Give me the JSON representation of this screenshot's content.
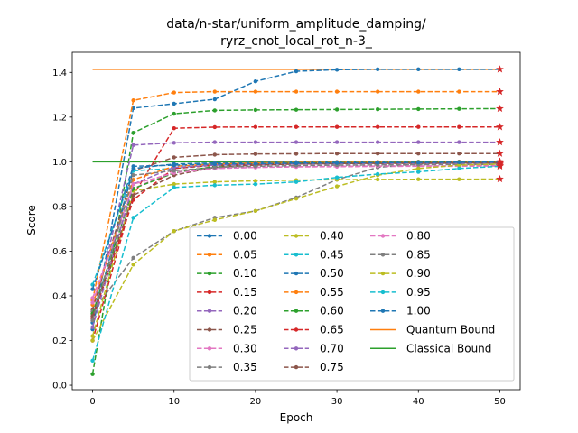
{
  "chart_data": {
    "type": "line",
    "title_line1": "data/n-star/uniform_amplitude_damping/",
    "title_line2": "ryrz_cnot_local_rot_n-3_",
    "xlabel": "Epoch",
    "ylabel": "Score",
    "xlim": [
      -2.5,
      52.5
    ],
    "ylim": [
      -0.02,
      1.49
    ],
    "xticks": [
      0,
      10,
      20,
      30,
      40,
      50
    ],
    "yticks": [
      0.0,
      0.2,
      0.4,
      0.6,
      0.8,
      1.0,
      1.2,
      1.4
    ],
    "x": [
      0,
      5,
      10,
      15,
      20,
      25,
      30,
      35,
      40,
      45,
      50
    ],
    "legend_location": "lower-right",
    "series": [
      {
        "name": "0.00",
        "color": "#1f77b4",
        "values": [
          0.25,
          1.24,
          1.26,
          1.28,
          1.36,
          1.405,
          1.412,
          1.414,
          1.414,
          1.414,
          1.414
        ]
      },
      {
        "name": "0.05",
        "color": "#ff7f0e",
        "values": [
          0.38,
          1.275,
          1.31,
          1.314,
          1.314,
          1.314,
          1.314,
          1.314,
          1.314,
          1.314,
          1.314
        ]
      },
      {
        "name": "0.10",
        "color": "#2ca02c",
        "values": [
          0.05,
          1.13,
          1.215,
          1.23,
          1.232,
          1.233,
          1.234,
          1.235,
          1.236,
          1.237,
          1.238
        ]
      },
      {
        "name": "0.15",
        "color": "#d62728",
        "values": [
          0.2,
          0.85,
          1.15,
          1.155,
          1.156,
          1.156,
          1.156,
          1.156,
          1.156,
          1.156,
          1.156
        ]
      },
      {
        "name": "0.20",
        "color": "#9467bd",
        "values": [
          0.3,
          1.075,
          1.085,
          1.088,
          1.088,
          1.088,
          1.088,
          1.088,
          1.088,
          1.088,
          1.088
        ]
      },
      {
        "name": "0.25",
        "color": "#8c564b",
        "values": [
          0.34,
          0.96,
          1.02,
          1.032,
          1.035,
          1.036,
          1.037,
          1.037,
          1.037,
          1.037,
          1.037
        ]
      },
      {
        "name": "0.30",
        "color": "#e377c2",
        "values": [
          0.39,
          0.88,
          0.96,
          0.97,
          0.975,
          0.977,
          0.978,
          0.979,
          0.98,
          0.98,
          0.981
        ]
      },
      {
        "name": "0.35",
        "color": "#7f7f7f",
        "values": [
          0.33,
          0.57,
          0.69,
          0.75,
          0.78,
          0.84,
          0.92,
          0.975,
          0.99,
          0.995,
          0.998
        ]
      },
      {
        "name": "0.40",
        "color": "#bcbd22",
        "values": [
          0.22,
          0.87,
          0.9,
          0.91,
          0.915,
          0.918,
          0.92,
          0.921,
          0.922,
          0.922,
          0.923
        ]
      },
      {
        "name": "0.45",
        "color": "#17becf",
        "values": [
          0.45,
          0.96,
          0.97,
          0.985,
          0.99,
          0.993,
          0.995,
          0.996,
          0.997,
          0.998,
          0.999
        ]
      },
      {
        "name": "0.50",
        "color": "#1f77b4",
        "values": [
          0.28,
          0.97,
          0.99,
          0.995,
          0.997,
          0.998,
          0.999,
          0.999,
          1.0,
          1.0,
          1.0
        ]
      },
      {
        "name": "0.55",
        "color": "#ff7f0e",
        "values": [
          0.36,
          0.92,
          0.98,
          0.99,
          0.995,
          0.997,
          0.998,
          0.999,
          0.999,
          1.0,
          1.0
        ]
      },
      {
        "name": "0.60",
        "color": "#2ca02c",
        "values": [
          0.32,
          0.88,
          0.95,
          0.98,
          0.99,
          0.994,
          0.996,
          0.997,
          0.998,
          0.999,
          1.0
        ]
      },
      {
        "name": "0.65",
        "color": "#d62728",
        "values": [
          0.3,
          0.83,
          0.97,
          0.985,
          0.99,
          0.992,
          0.994,
          0.995,
          0.996,
          0.997,
          0.998
        ]
      },
      {
        "name": "0.70",
        "color": "#9467bd",
        "values": [
          0.26,
          0.9,
          0.975,
          0.985,
          0.988,
          0.99,
          0.991,
          0.992,
          0.993,
          0.993,
          0.994
        ]
      },
      {
        "name": "0.75",
        "color": "#8c564b",
        "values": [
          0.31,
          0.85,
          0.94,
          0.975,
          0.985,
          0.99,
          0.992,
          0.993,
          0.994,
          0.995,
          0.995
        ]
      },
      {
        "name": "0.80",
        "color": "#e377c2",
        "values": [
          0.37,
          0.9,
          0.95,
          0.97,
          0.975,
          0.978,
          0.98,
          0.981,
          0.982,
          0.982,
          0.983
        ]
      },
      {
        "name": "0.85",
        "color": "#7f7f7f",
        "values": [
          0.29,
          0.94,
          0.96,
          0.975,
          0.98,
          0.983,
          0.985,
          0.986,
          0.987,
          0.988,
          0.988
        ]
      },
      {
        "name": "0.90",
        "color": "#bcbd22",
        "values": [
          0.2,
          0.54,
          0.69,
          0.74,
          0.78,
          0.835,
          0.89,
          0.94,
          0.97,
          0.985,
          0.99
        ]
      },
      {
        "name": "0.95",
        "color": "#17becf",
        "values": [
          0.11,
          0.75,
          0.885,
          0.895,
          0.9,
          0.91,
          0.93,
          0.945,
          0.955,
          0.97,
          0.98
        ]
      },
      {
        "name": "1.00",
        "color": "#1f77b4",
        "values": [
          0.43,
          0.98,
          0.985,
          0.99,
          0.992,
          0.994,
          0.995,
          0.996,
          0.997,
          0.998,
          0.999
        ]
      }
    ],
    "reference_lines": [
      {
        "name": "Quantum Bound",
        "color": "#ff7f0e",
        "y": 1.414
      },
      {
        "name": "Classical Bound",
        "color": "#2ca02c",
        "y": 1.0
      }
    ],
    "final_marker": "star-red",
    "marker_color": "#d62728",
    "axis_color": "#000000"
  }
}
